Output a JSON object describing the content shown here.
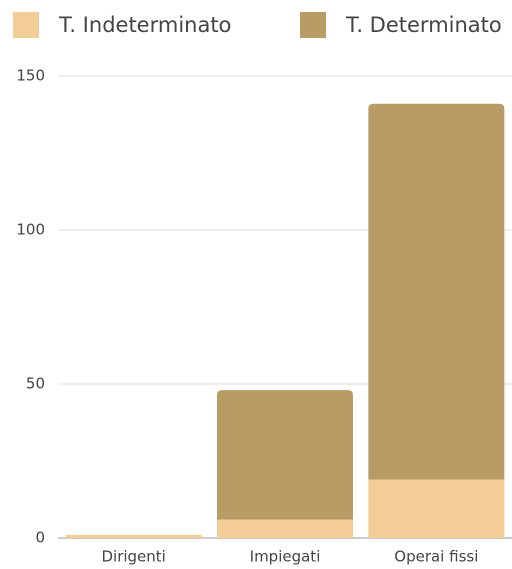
{
  "chart_data": {
    "type": "stacked_bar",
    "categories": [
      "Dirigenti",
      "Impiegati",
      "Operai fissi"
    ],
    "series": [
      {
        "name": "T. Indeterminato",
        "color": "#f2cd96",
        "values": [
          1,
          6,
          19
        ]
      },
      {
        "name": "T. Determinato",
        "color": "#b99c65",
        "values": [
          0,
          42,
          122
        ]
      }
    ],
    "ylim": [
      0,
      150
    ],
    "yticks": [
      0,
      50,
      100,
      150
    ],
    "grid": true,
    "legend": "top"
  }
}
